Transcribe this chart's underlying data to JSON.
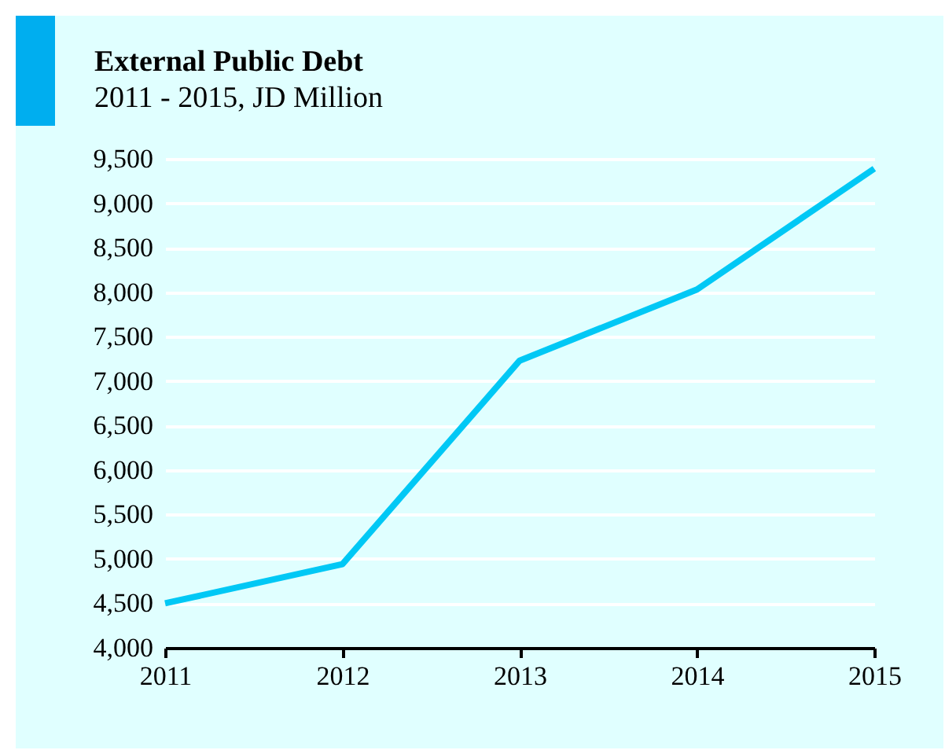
{
  "chart_data": {
    "type": "line",
    "title": "External Public Debt",
    "subtitle": "2011 - 2015, JD Million",
    "categories": [
      "2011",
      "2012",
      "2013",
      "2014",
      "2015"
    ],
    "series": [
      {
        "color": "#00c8f5",
        "values": [
          4500,
          4940,
          7230,
          8030,
          9390
        ]
      }
    ],
    "ylim": [
      4000,
      9500
    ],
    "yticks": [
      {
        "value": 4000,
        "label": "4,000"
      },
      {
        "value": 4500,
        "label": "4,500"
      },
      {
        "value": 5000,
        "label": "5,000"
      },
      {
        "value": 5500,
        "label": "5,500"
      },
      {
        "value": 6000,
        "label": "6,000"
      },
      {
        "value": 6500,
        "label": "6,500"
      },
      {
        "value": 7000,
        "label": "7,000"
      },
      {
        "value": 7500,
        "label": "7,500"
      },
      {
        "value": 8000,
        "label": "8,000"
      },
      {
        "value": 8500,
        "label": "8,500"
      },
      {
        "value": 9000,
        "label": "9,000"
      },
      {
        "value": 9500,
        "label": "9,500"
      }
    ],
    "grid": "y",
    "legend": false
  }
}
